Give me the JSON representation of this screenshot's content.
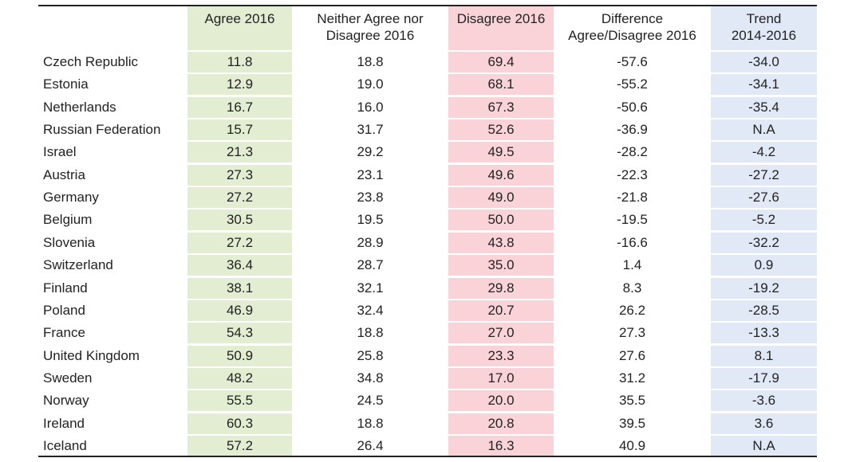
{
  "headers": {
    "country": "",
    "agree": "Agree 2016",
    "neither": "Neither Agree nor\nDisagree 2016",
    "disagree": "Disagree 2016",
    "difference": "Difference\nAgree/Disagree 2016",
    "trend": "Trend\n2014-2016"
  },
  "colors": {
    "agree": "#e2edd1",
    "disagree": "#fad3d8",
    "trend": "#e1e9f6"
  },
  "rows": [
    {
      "country": "Czech Republic",
      "agree": "11.8",
      "neither": "18.8",
      "disagree": "69.4",
      "difference": "-57.6",
      "trend": "-34.0"
    },
    {
      "country": "Estonia",
      "agree": "12.9",
      "neither": "19.0",
      "disagree": "68.1",
      "difference": "-55.2",
      "trend": "-34.1"
    },
    {
      "country": "Netherlands",
      "agree": "16.7",
      "neither": "16.0",
      "disagree": "67.3",
      "difference": "-50.6",
      "trend": "-35.4"
    },
    {
      "country": "Russian Federation",
      "agree": "15.7",
      "neither": "31.7",
      "disagree": "52.6",
      "difference": "-36.9",
      "trend": "N.A"
    },
    {
      "country": "Israel",
      "agree": "21.3",
      "neither": "29.2",
      "disagree": "49.5",
      "difference": "-28.2",
      "trend": "-4.2"
    },
    {
      "country": "Austria",
      "agree": "27.3",
      "neither": "23.1",
      "disagree": "49.6",
      "difference": "-22.3",
      "trend": "-27.2"
    },
    {
      "country": "Germany",
      "agree": "27.2",
      "neither": "23.8",
      "disagree": "49.0",
      "difference": "-21.8",
      "trend": "-27.6"
    },
    {
      "country": "Belgium",
      "agree": "30.5",
      "neither": "19.5",
      "disagree": "50.0",
      "difference": "-19.5",
      "trend": "-5.2"
    },
    {
      "country": "Slovenia",
      "agree": "27.2",
      "neither": "28.9",
      "disagree": "43.8",
      "difference": "-16.6",
      "trend": "-32.2"
    },
    {
      "country": "Switzerland",
      "agree": "36.4",
      "neither": "28.7",
      "disagree": "35.0",
      "difference": "1.4",
      "trend": "0.9"
    },
    {
      "country": "Finland",
      "agree": "38.1",
      "neither": "32.1",
      "disagree": "29.8",
      "difference": "8.3",
      "trend": "-19.2"
    },
    {
      "country": "Poland",
      "agree": "46.9",
      "neither": "32.4",
      "disagree": "20.7",
      "difference": "26.2",
      "trend": "-28.5"
    },
    {
      "country": "France",
      "agree": "54.3",
      "neither": "18.8",
      "disagree": "27.0",
      "difference": "27.3",
      "trend": "-13.3"
    },
    {
      "country": "United Kingdom",
      "agree": "50.9",
      "neither": "25.8",
      "disagree": "23.3",
      "difference": "27.6",
      "trend": "8.1"
    },
    {
      "country": "Sweden",
      "agree": "48.2",
      "neither": "34.8",
      "disagree": "17.0",
      "difference": "31.2",
      "trend": "-17.9"
    },
    {
      "country": "Norway",
      "agree": "55.5",
      "neither": "24.5",
      "disagree": "20.0",
      "difference": "35.5",
      "trend": "-3.6"
    },
    {
      "country": "Ireland",
      "agree": "60.3",
      "neither": "18.8",
      "disagree": "20.8",
      "difference": "39.5",
      "trend": "3.6"
    },
    {
      "country": "Iceland",
      "agree": "57.2",
      "neither": "26.4",
      "disagree": "16.3",
      "difference": "40.9",
      "trend": "N.A"
    }
  ]
}
